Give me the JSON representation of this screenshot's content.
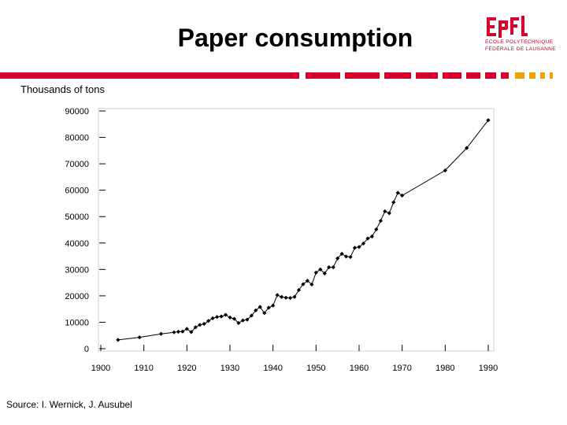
{
  "slide": {
    "title": "Paper consumption",
    "source": "Source: I. Wernick, J. Ausubel"
  },
  "logo": {
    "mark": "EPFL",
    "line1": "ÉCOLE POLYTECHNIQUE",
    "line2": "FÉDÉRALE DE LAUSANNE"
  },
  "colors": {
    "brand_red": "#d9002e",
    "divider_orange": "#f0a000",
    "line": "#000000"
  },
  "chart_data": {
    "type": "line",
    "title": "Paper consumption",
    "ylabel": "Thousands of tons",
    "xlabel": "",
    "xlim": [
      1900,
      1990
    ],
    "ylim": [
      0,
      90000
    ],
    "x_ticks": [
      1900,
      1910,
      1920,
      1930,
      1940,
      1950,
      1960,
      1970,
      1980,
      1990
    ],
    "y_ticks": [
      0,
      10000,
      20000,
      30000,
      40000,
      50000,
      60000,
      70000,
      80000,
      90000
    ],
    "series": [
      {
        "name": "Paper consumption",
        "x": [
          1904,
          1909,
          1914,
          1917,
          1918,
          1919,
          1920,
          1921,
          1922,
          1923,
          1924,
          1925,
          1926,
          1927,
          1928,
          1929,
          1930,
          1931,
          1932,
          1933,
          1934,
          1935,
          1936,
          1937,
          1938,
          1939,
          1940,
          1941,
          1942,
          1943,
          1944,
          1945,
          1946,
          1947,
          1948,
          1949,
          1950,
          1951,
          1952,
          1953,
          1954,
          1955,
          1956,
          1957,
          1958,
          1959,
          1960,
          1961,
          1962,
          1963,
          1964,
          1965,
          1966,
          1967,
          1968,
          1969,
          1970,
          1980,
          1985,
          1990
        ],
        "values": [
          3300,
          4300,
          5600,
          6200,
          6400,
          6500,
          7500,
          6300,
          8100,
          9000,
          9400,
          10500,
          11500,
          12000,
          12200,
          12800,
          11800,
          11300,
          9700,
          10700,
          11000,
          12500,
          14500,
          15800,
          13500,
          15500,
          16300,
          20300,
          19600,
          19300,
          19200,
          19600,
          22200,
          24400,
          25700,
          24300,
          28800,
          30000,
          28500,
          30800,
          30800,
          34200,
          35900,
          34900,
          34700,
          38200,
          38500,
          39800,
          41700,
          42500,
          45200,
          48400,
          52000,
          51300,
          55400,
          59000,
          58000,
          67500,
          76000,
          86500
        ]
      }
    ]
  }
}
